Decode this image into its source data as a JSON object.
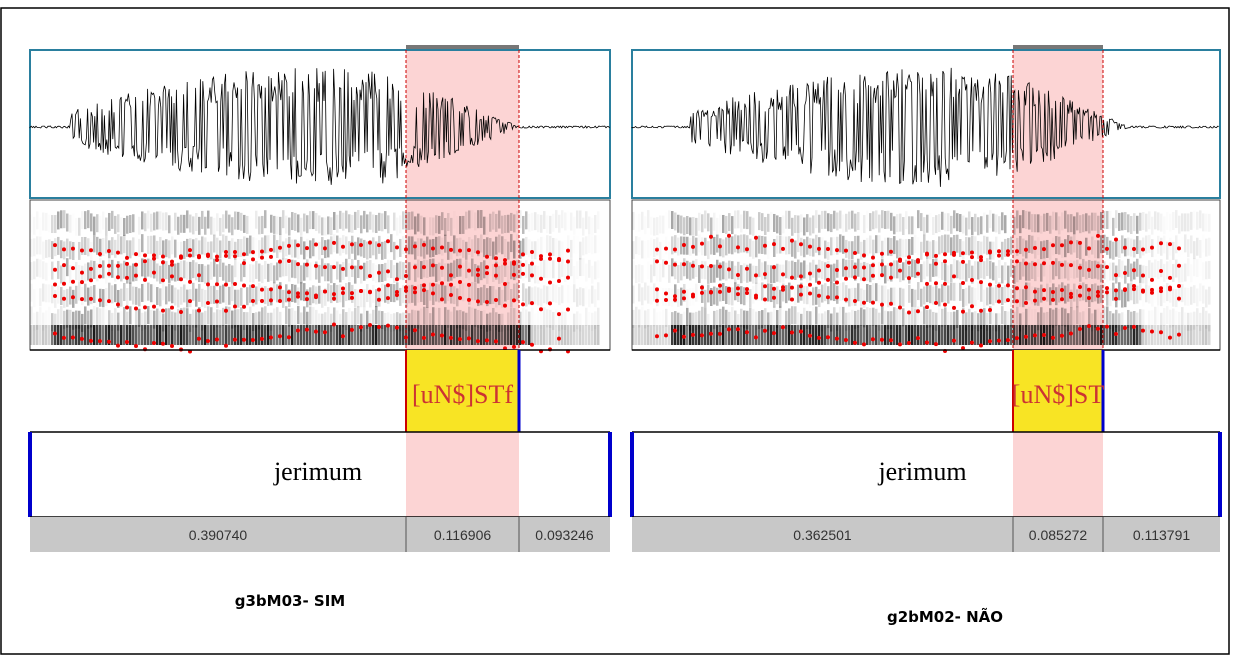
{
  "panels": [
    {
      "interval_label": "[uN$]STf",
      "word": "jerimum",
      "durations": [
        "0.390740",
        "0.116906",
        "0.093246"
      ],
      "caption": "g3bM03- SIM"
    },
    {
      "interval_label": "[uN$]ST",
      "word": "jerimum",
      "durations": [
        "0.362501",
        "0.085272",
        "0.113791"
      ],
      "caption": "g2bM02- NÃO"
    }
  ]
}
